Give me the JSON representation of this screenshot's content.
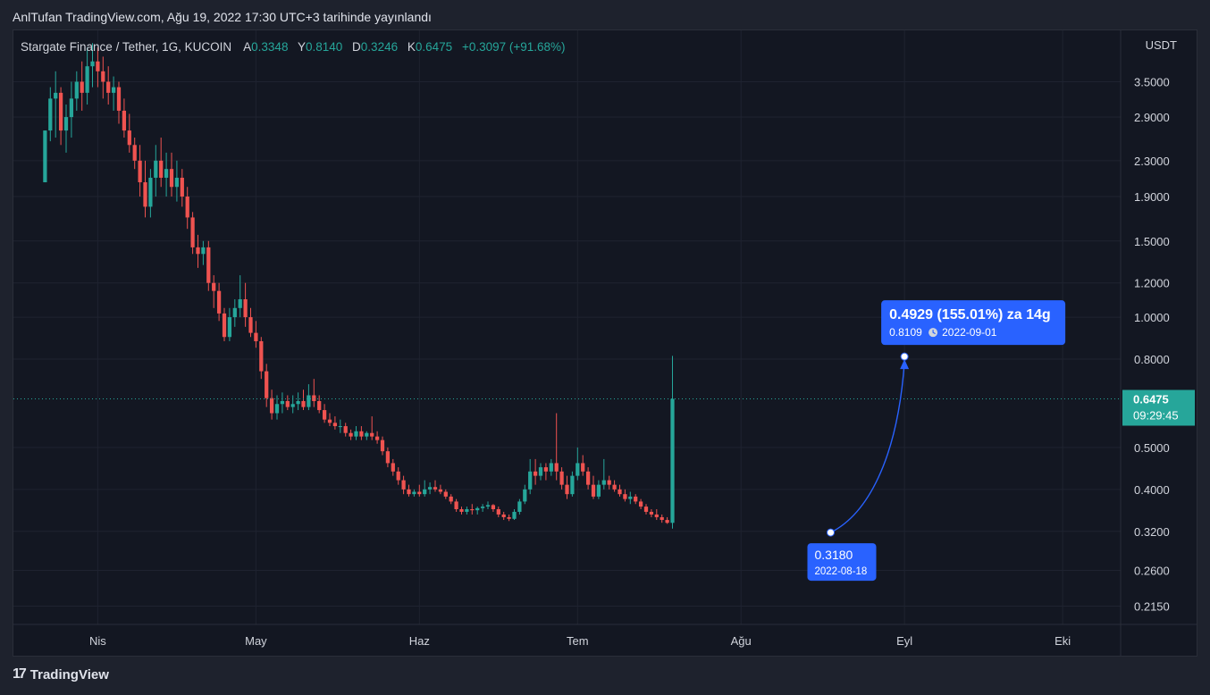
{
  "header": {
    "published": "AnlTufan TradingView.com, Ağu 19, 2022 17:30 UTC+3 tarihinde yayınlandı"
  },
  "legend": {
    "symbol": "Stargate Finance / Tether, 1G, KUCOIN",
    "open_label": "A",
    "open": "0.3348",
    "high_label": "Y",
    "high": "0.8140",
    "low_label": "D",
    "low": "0.3246",
    "close_label": "K",
    "close": "0.6475",
    "change": "+0.3097 (+91.68%)"
  },
  "price_axis": {
    "currency": "USDT"
  },
  "footer": {
    "brand": "TradingView",
    "logo_icon": "tradingview-logo-icon"
  },
  "colors": {
    "up": "#26a69a",
    "down": "#ef5350",
    "background": "#131722",
    "accent": "#2962ff"
  },
  "chart_data": {
    "type": "candlestick",
    "y_scale": "log",
    "ylim": [
      0.195,
      4.6
    ],
    "xlim": [
      "2022-03-16",
      "2022-10-12"
    ],
    "y_ticks": [
      "3.5000",
      "2.9000",
      "2.3000",
      "1.9000",
      "1.5000",
      "1.2000",
      "1.0000",
      "0.8000",
      "0.5000",
      "0.4000",
      "0.3200",
      "0.2600",
      "0.2150"
    ],
    "x_ticks": [
      {
        "label": "Nis",
        "date": "2022-04-01"
      },
      {
        "label": "May",
        "date": "2022-05-01"
      },
      {
        "label": "Haz",
        "date": "2022-06-01"
      },
      {
        "label": "Tem",
        "date": "2022-07-01"
      },
      {
        "label": "Ağu",
        "date": "2022-08-01"
      },
      {
        "label": "Eyl",
        "date": "2022-09-01"
      },
      {
        "label": "Eki",
        "date": "2022-10-01"
      }
    ],
    "grid": true,
    "last_price": {
      "value": "0.6475",
      "countdown": "09:29:45"
    },
    "candles_start": "2022-03-22",
    "ohlc": [
      [
        2.05,
        2.7,
        2.05,
        2.7
      ],
      [
        2.7,
        3.4,
        2.55,
        3.2
      ],
      [
        3.2,
        3.7,
        2.6,
        3.3
      ],
      [
        3.3,
        3.4,
        2.5,
        2.7
      ],
      [
        2.7,
        3.1,
        2.4,
        2.9
      ],
      [
        2.9,
        3.5,
        2.6,
        3.2
      ],
      [
        3.2,
        3.7,
        3.0,
        3.5
      ],
      [
        3.5,
        3.9,
        3.0,
        3.3
      ],
      [
        3.3,
        4.2,
        3.1,
        3.8
      ],
      [
        3.8,
        4.3,
        3.4,
        3.9
      ],
      [
        3.9,
        4.2,
        3.4,
        3.7
      ],
      [
        3.7,
        4.0,
        3.2,
        3.5
      ],
      [
        3.5,
        3.8,
        3.1,
        3.3
      ],
      [
        3.3,
        3.6,
        3.0,
        3.4
      ],
      [
        3.4,
        3.5,
        2.8,
        3.0
      ],
      [
        3.0,
        3.2,
        2.6,
        2.7
      ],
      [
        2.7,
        2.95,
        2.4,
        2.5
      ],
      [
        2.5,
        2.6,
        2.2,
        2.3
      ],
      [
        2.3,
        2.5,
        1.9,
        2.05
      ],
      [
        2.05,
        2.3,
        1.7,
        1.8
      ],
      [
        1.8,
        2.2,
        1.7,
        2.1
      ],
      [
        2.1,
        2.5,
        1.9,
        2.3
      ],
      [
        2.3,
        2.6,
        2.0,
        2.1
      ],
      [
        2.1,
        2.4,
        1.9,
        2.2
      ],
      [
        2.2,
        2.4,
        1.9,
        2.0
      ],
      [
        2.0,
        2.3,
        1.85,
        2.1
      ],
      [
        2.1,
        2.2,
        1.8,
        1.9
      ],
      [
        1.9,
        2.0,
        1.6,
        1.7
      ],
      [
        1.7,
        1.75,
        1.4,
        1.45
      ],
      [
        1.45,
        1.55,
        1.3,
        1.4
      ],
      [
        1.4,
        1.5,
        1.32,
        1.45
      ],
      [
        1.45,
        1.5,
        1.15,
        1.2
      ],
      [
        1.2,
        1.25,
        1.05,
        1.15
      ],
      [
        1.15,
        1.2,
        0.98,
        1.02
      ],
      [
        1.02,
        1.05,
        0.88,
        0.9
      ],
      [
        0.9,
        1.05,
        0.88,
        1.0
      ],
      [
        1.0,
        1.1,
        0.95,
        1.05
      ],
      [
        1.05,
        1.25,
        1.0,
        1.1
      ],
      [
        1.1,
        1.2,
        0.95,
        1.0
      ],
      [
        1.0,
        1.05,
        0.9,
        0.92
      ],
      [
        0.92,
        0.98,
        0.85,
        0.88
      ],
      [
        0.88,
        0.9,
        0.72,
        0.75
      ],
      [
        0.75,
        0.78,
        0.62,
        0.65
      ],
      [
        0.65,
        0.68,
        0.58,
        0.6
      ],
      [
        0.6,
        0.66,
        0.58,
        0.63
      ],
      [
        0.63,
        0.67,
        0.6,
        0.64
      ],
      [
        0.64,
        0.66,
        0.61,
        0.62
      ],
      [
        0.62,
        0.66,
        0.6,
        0.63
      ],
      [
        0.63,
        0.67,
        0.61,
        0.64
      ],
      [
        0.64,
        0.68,
        0.61,
        0.62
      ],
      [
        0.62,
        0.7,
        0.61,
        0.66
      ],
      [
        0.66,
        0.72,
        0.62,
        0.64
      ],
      [
        0.64,
        0.66,
        0.6,
        0.61
      ],
      [
        0.61,
        0.63,
        0.57,
        0.58
      ],
      [
        0.58,
        0.6,
        0.56,
        0.57
      ],
      [
        0.57,
        0.59,
        0.55,
        0.56
      ],
      [
        0.56,
        0.58,
        0.54,
        0.56
      ],
      [
        0.56,
        0.57,
        0.53,
        0.54
      ],
      [
        0.54,
        0.55,
        0.52,
        0.53
      ],
      [
        0.53,
        0.56,
        0.52,
        0.545
      ],
      [
        0.545,
        0.56,
        0.52,
        0.53
      ],
      [
        0.53,
        0.545,
        0.52,
        0.54
      ],
      [
        0.54,
        0.59,
        0.52,
        0.53
      ],
      [
        0.53,
        0.545,
        0.51,
        0.52
      ],
      [
        0.52,
        0.53,
        0.48,
        0.49
      ],
      [
        0.49,
        0.5,
        0.45,
        0.46
      ],
      [
        0.46,
        0.47,
        0.43,
        0.44
      ],
      [
        0.44,
        0.45,
        0.41,
        0.42
      ],
      [
        0.42,
        0.43,
        0.39,
        0.4
      ],
      [
        0.4,
        0.41,
        0.385,
        0.39
      ],
      [
        0.39,
        0.4,
        0.385,
        0.395
      ],
      [
        0.395,
        0.41,
        0.385,
        0.39
      ],
      [
        0.39,
        0.42,
        0.385,
        0.4
      ],
      [
        0.4,
        0.415,
        0.39,
        0.405
      ],
      [
        0.405,
        0.42,
        0.395,
        0.4
      ],
      [
        0.4,
        0.41,
        0.39,
        0.395
      ],
      [
        0.395,
        0.4,
        0.38,
        0.385
      ],
      [
        0.385,
        0.39,
        0.37,
        0.375
      ],
      [
        0.375,
        0.38,
        0.355,
        0.36
      ],
      [
        0.36,
        0.365,
        0.35,
        0.355
      ],
      [
        0.355,
        0.365,
        0.35,
        0.36
      ],
      [
        0.36,
        0.37,
        0.35,
        0.358
      ],
      [
        0.358,
        0.365,
        0.35,
        0.362
      ],
      [
        0.362,
        0.37,
        0.355,
        0.365
      ],
      [
        0.365,
        0.375,
        0.36,
        0.368
      ],
      [
        0.368,
        0.37,
        0.355,
        0.36
      ],
      [
        0.36,
        0.365,
        0.345,
        0.35
      ],
      [
        0.35,
        0.355,
        0.34,
        0.345
      ],
      [
        0.345,
        0.35,
        0.338,
        0.342
      ],
      [
        0.342,
        0.36,
        0.34,
        0.355
      ],
      [
        0.355,
        0.38,
        0.35,
        0.375
      ],
      [
        0.375,
        0.41,
        0.37,
        0.4
      ],
      [
        0.4,
        0.47,
        0.39,
        0.44
      ],
      [
        0.44,
        0.47,
        0.41,
        0.43
      ],
      [
        0.43,
        0.46,
        0.42,
        0.45
      ],
      [
        0.45,
        0.46,
        0.42,
        0.44
      ],
      [
        0.44,
        0.47,
        0.43,
        0.46
      ],
      [
        0.46,
        0.6,
        0.42,
        0.44
      ],
      [
        0.44,
        0.45,
        0.4,
        0.41
      ],
      [
        0.41,
        0.43,
        0.38,
        0.39
      ],
      [
        0.39,
        0.44,
        0.385,
        0.43
      ],
      [
        0.43,
        0.5,
        0.42,
        0.46
      ],
      [
        0.46,
        0.48,
        0.43,
        0.44
      ],
      [
        0.44,
        0.45,
        0.4,
        0.41
      ],
      [
        0.41,
        0.43,
        0.38,
        0.385
      ],
      [
        0.385,
        0.42,
        0.38,
        0.41
      ],
      [
        0.41,
        0.47,
        0.4,
        0.42
      ],
      [
        0.42,
        0.43,
        0.4,
        0.41
      ],
      [
        0.41,
        0.42,
        0.395,
        0.4
      ],
      [
        0.4,
        0.41,
        0.385,
        0.39
      ],
      [
        0.39,
        0.4,
        0.375,
        0.38
      ],
      [
        0.38,
        0.395,
        0.37,
        0.385
      ],
      [
        0.385,
        0.39,
        0.37,
        0.375
      ],
      [
        0.375,
        0.38,
        0.36,
        0.365
      ],
      [
        0.365,
        0.37,
        0.35,
        0.355
      ],
      [
        0.355,
        0.36,
        0.345,
        0.35
      ],
      [
        0.35,
        0.36,
        0.34,
        0.345
      ],
      [
        0.345,
        0.35,
        0.335,
        0.34
      ],
      [
        0.34,
        0.345,
        0.333,
        0.3348
      ],
      [
        0.3348,
        0.814,
        0.3246,
        0.6475
      ]
    ],
    "measurement": {
      "start": {
        "date": "2022-08-18",
        "price": 0.318,
        "price_label": "0.3180",
        "date_label": "2022-08-18"
      },
      "end": {
        "date": "2022-09-01",
        "price": 0.8109,
        "price_label": "0.8109",
        "date_label": "2022-09-01"
      },
      "headline": "0.4929 (155.01%) za 14g",
      "icon": "clock-icon"
    }
  }
}
